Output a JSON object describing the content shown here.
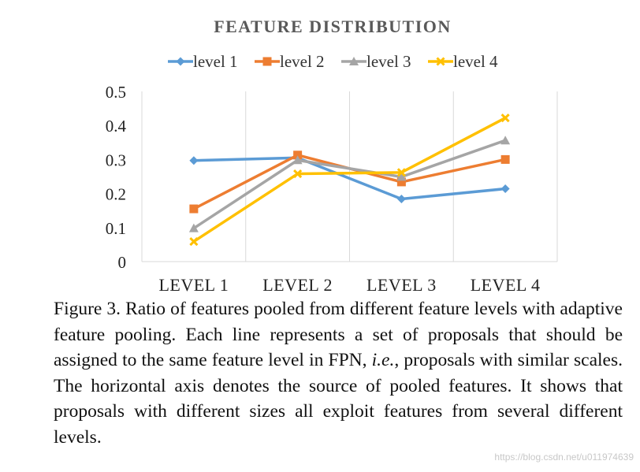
{
  "chart_data": {
    "type": "line",
    "title": "FEATURE DISTRIBUTION",
    "categories": [
      "LEVEL 1",
      "LEVEL 2",
      "LEVEL 3",
      "LEVEL 4"
    ],
    "ylim": [
      0,
      0.5
    ],
    "yticks": [
      "0",
      "0.1",
      "0.2",
      "0.3",
      "0.4",
      "0.5"
    ],
    "xlabel": "",
    "ylabel": "",
    "grid": "vertical",
    "legend": "top-center",
    "series": [
      {
        "name": "level 1",
        "color": "#5b9bd5",
        "marker": "diamond",
        "values": [
          0.297,
          0.305,
          0.184,
          0.214
        ]
      },
      {
        "name": "level 2",
        "color": "#ed7d31",
        "marker": "square",
        "values": [
          0.155,
          0.313,
          0.234,
          0.3
        ]
      },
      {
        "name": "level 3",
        "color": "#a5a5a5",
        "marker": "triangle",
        "values": [
          0.098,
          0.298,
          0.249,
          0.356
        ]
      },
      {
        "name": "level 4",
        "color": "#ffc000",
        "marker": "x",
        "values": [
          0.059,
          0.258,
          0.262,
          0.422
        ]
      }
    ]
  },
  "caption": {
    "prefix": "Figure 3. Ratio of features pooled from different feature levels with adaptive feature pooling. Each line represents a set of proposals that should be assigned to the same feature level in FPN, ",
    "italic": "i.e.",
    "suffix": ", proposals with similar scales. The horizontal axis denotes the source of pooled features. It shows that proposals with different sizes all exploit features from several different levels."
  },
  "watermark": "https://blog.csdn.net/u011974639"
}
